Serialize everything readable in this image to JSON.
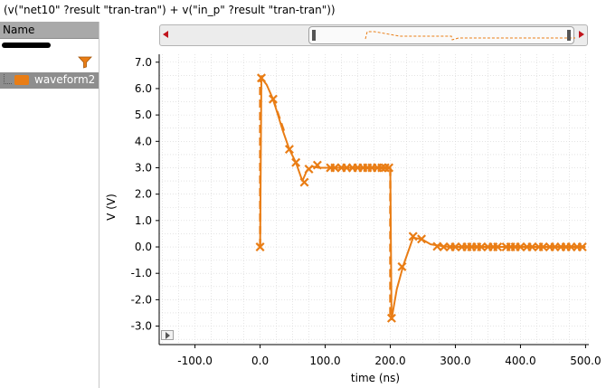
{
  "expression": "(v(\"net10\" ?result \"tran-tran\") + v(\"in_p\" ?result \"tran-tran\"))",
  "browser": {
    "header": "Name",
    "waveform_label": "waveform2",
    "icons": {
      "filter": "filter-funnel-icon",
      "play": "play-icon"
    }
  },
  "colors": {
    "trace": "#e97d15",
    "panel_header": "#a9a9a9",
    "selected_row": "#8e8e8e",
    "scroll_arrow": "#c0141c"
  },
  "chart_data": {
    "type": "line",
    "title": "",
    "xlabel": "time (ns)",
    "ylabel": "V (V)",
    "xlim": [
      -155,
      505
    ],
    "ylim": [
      -3.7,
      7.3
    ],
    "grid": true,
    "x_ticks": [
      -100,
      0,
      100,
      200,
      300,
      400,
      500
    ],
    "x_tick_labels": [
      "-100.0",
      "0.0",
      "100.0",
      "200.0",
      "300.0",
      "400.0",
      "500.0"
    ],
    "y_ticks": [
      7,
      6,
      5,
      4,
      3,
      2,
      1,
      0,
      -1,
      -2,
      -3
    ],
    "y_tick_labels": [
      "7.0",
      "6.0",
      "5.0",
      "4.0",
      "3.0",
      "2.0",
      "1.0",
      "0.0",
      "-1.0",
      "-2.0",
      "-3.0"
    ],
    "series": [
      {
        "line_points": [
          [
            0,
            0
          ],
          [
            2,
            6.4
          ],
          [
            10,
            6.15
          ],
          [
            20,
            5.6
          ],
          [
            35,
            4.4
          ],
          [
            45,
            3.7
          ],
          [
            55,
            3.2
          ],
          [
            65,
            2.5
          ],
          [
            72,
            2.9
          ],
          [
            80,
            3.05
          ],
          [
            90,
            3.0
          ],
          [
            200,
            3.0
          ],
          [
            202,
            -2.75
          ],
          [
            210,
            -1.6
          ],
          [
            220,
            -0.7
          ],
          [
            235,
            0.35
          ],
          [
            248,
            0.3
          ],
          [
            262,
            0.1
          ],
          [
            275,
            0.05
          ],
          [
            290,
            0.0
          ],
          [
            500,
            0.0
          ]
        ],
        "dashed_segments": [
          [
            [
              0,
              0
            ],
            [
              0,
              6.2
            ],
            [
              3,
              6.5
            ]
          ],
          [
            [
              200,
              3.0
            ],
            [
              200,
              -2.7
            ]
          ],
          [
            [
              20,
              5.6
            ],
            [
              38,
              4.3
            ]
          ]
        ],
        "markers": [
          [
            0,
            0
          ],
          [
            2,
            6.4
          ],
          [
            20,
            5.6
          ],
          [
            45,
            3.7
          ],
          [
            55,
            3.2
          ],
          [
            68,
            2.45
          ],
          [
            75,
            2.95
          ],
          [
            88,
            3.1
          ],
          [
            108,
            3.0
          ],
          [
            115,
            3.0
          ],
          [
            125,
            3.0
          ],
          [
            133,
            3.0
          ],
          [
            142,
            3.0
          ],
          [
            150,
            3.0
          ],
          [
            158,
            3.0
          ],
          [
            165,
            3.0
          ],
          [
            172,
            3.0
          ],
          [
            180,
            3.0
          ],
          [
            187,
            3.0
          ],
          [
            192,
            3.0
          ],
          [
            198,
            3.0
          ],
          [
            202,
            -2.7
          ],
          [
            218,
            -0.75
          ],
          [
            235,
            0.4
          ],
          [
            248,
            0.3
          ],
          [
            272,
            0.02
          ],
          [
            282,
            0.0
          ],
          [
            292,
            0.0
          ],
          [
            300,
            0.0
          ],
          [
            310,
            0.0
          ],
          [
            318,
            0.0
          ],
          [
            325,
            0.0
          ],
          [
            333,
            0.0
          ],
          [
            340,
            0.0
          ],
          [
            350,
            0.0
          ],
          [
            358,
            0.0
          ],
          [
            365,
            0.0
          ],
          [
            378,
            0.0
          ],
          [
            385,
            0.0
          ],
          [
            392,
            0.0
          ],
          [
            400,
            0.0
          ],
          [
            410,
            0.0
          ],
          [
            418,
            0.0
          ],
          [
            428,
            0.0
          ],
          [
            435,
            0.0
          ],
          [
            445,
            0.0
          ],
          [
            453,
            0.0
          ],
          [
            462,
            0.0
          ],
          [
            470,
            0.0
          ],
          [
            478,
            0.0
          ],
          [
            487,
            0.0
          ],
          [
            495,
            0.0
          ]
        ]
      }
    ]
  }
}
